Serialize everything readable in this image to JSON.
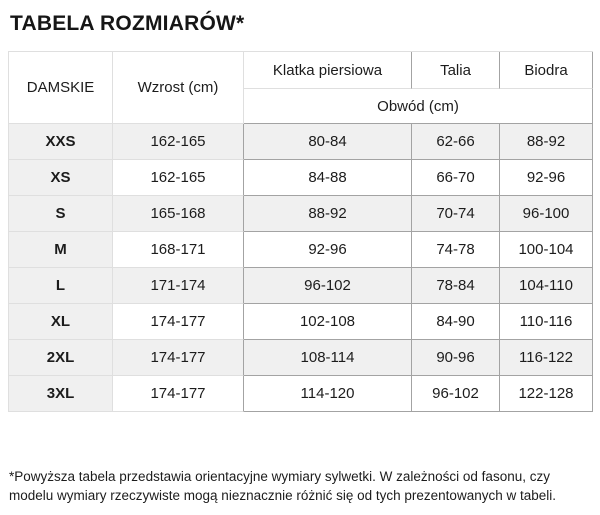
{
  "page": {
    "title": "TABELA ROZMIARÓW*"
  },
  "table": {
    "headers": {
      "size": "DAMSKIE",
      "height": "Wzrost (cm)",
      "chest": "Klatka piersiowa",
      "waist": "Talia",
      "hips": "Biodra",
      "circumference": "Obwód (cm)"
    },
    "rows": [
      {
        "size": "XXS",
        "height": "162-165",
        "chest": "80-84",
        "waist": "62-66",
        "hips": "88-92"
      },
      {
        "size": "XS",
        "height": "162-165",
        "chest": "84-88",
        "waist": "66-70",
        "hips": "92-96"
      },
      {
        "size": "S",
        "height": "165-168",
        "chest": "88-92",
        "waist": "70-74",
        "hips": "96-100"
      },
      {
        "size": "M",
        "height": "168-171",
        "chest": "92-96",
        "waist": "74-78",
        "hips": "100-104"
      },
      {
        "size": "L",
        "height": "171-174",
        "chest": "96-102",
        "waist": "78-84",
        "hips": "104-110"
      },
      {
        "size": "XL",
        "height": "174-177",
        "chest": "102-108",
        "waist": "84-90",
        "hips": "110-116"
      },
      {
        "size": "2XL",
        "height": "174-177",
        "chest": "108-114",
        "waist": "90-96",
        "hips": "116-122"
      },
      {
        "size": "3XL",
        "height": "174-177",
        "chest": "114-120",
        "waist": "96-102",
        "hips": "122-128"
      }
    ],
    "colors": {
      "row_shade": "#f0f0f0",
      "border_light": "#dfdfdf",
      "border_dark": "#a3a3a3",
      "text": "#1c1c1c"
    }
  },
  "footnote": {
    "lines": [
      "*Powyższa tabela przedstawia orientacyjne wymiary sylwetki. W zależności od fasonu, czy",
      "modelu wymiary rzeczywiste mogą nieznacznie różnić się od tych prezentowanych w tabeli."
    ]
  }
}
